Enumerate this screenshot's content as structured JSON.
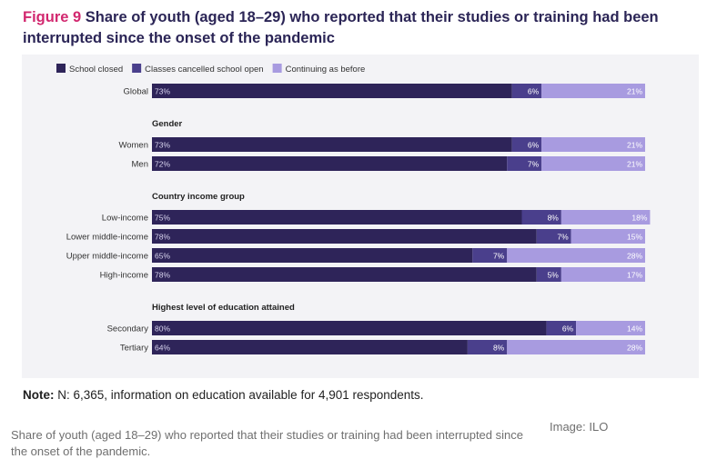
{
  "figure": {
    "label": "Figure 9",
    "title": "Share of youth (aged 18–29) who reported that their studies or training had been interrupted since the onset of the pandemic"
  },
  "note": {
    "label": "Note:",
    "text": "N: 6,365, information on education available for 4,901 respondents."
  },
  "caption": "Share of youth (aged 18–29) who reported that their studies or training had been interrupted since the onset of the pandemic.",
  "credit": "Image: ILO",
  "colors": {
    "school_closed": "#2e2459",
    "classes_cancelled": "#4a3f8c",
    "continuing": "#a89be0"
  },
  "chart_data": {
    "type": "bar",
    "orientation": "horizontal",
    "stacked": true,
    "legend_position": "top-left",
    "xlim": [
      0,
      100
    ],
    "series": [
      {
        "name": "School closed",
        "color": "#2e2459"
      },
      {
        "name": "Classes cancelled school open",
        "color": "#4a3f8c"
      },
      {
        "name": "Continuing as before",
        "color": "#a89be0"
      }
    ],
    "groups": [
      {
        "heading": "",
        "rows": [
          {
            "label": "Global",
            "values": [
              73,
              6,
              21
            ]
          }
        ]
      },
      {
        "heading": "Gender",
        "rows": [
          {
            "label": "Women",
            "values": [
              73,
              6,
              21
            ]
          },
          {
            "label": "Men",
            "values": [
              72,
              7,
              21
            ]
          }
        ]
      },
      {
        "heading": "Country income group",
        "rows": [
          {
            "label": "Low-income",
            "values": [
              75,
              8,
              18
            ]
          },
          {
            "label": "Lower middle-income",
            "values": [
              78,
              7,
              15
            ]
          },
          {
            "label": "Upper middle-income",
            "values": [
              65,
              7,
              28
            ]
          },
          {
            "label": "High-income",
            "values": [
              78,
              5,
              17
            ]
          }
        ]
      },
      {
        "heading": "Highest level of education attained",
        "rows": [
          {
            "label": "Secondary",
            "values": [
              80,
              6,
              14
            ]
          },
          {
            "label": "Tertiary",
            "values": [
              64,
              8,
              28
            ]
          }
        ]
      }
    ]
  }
}
